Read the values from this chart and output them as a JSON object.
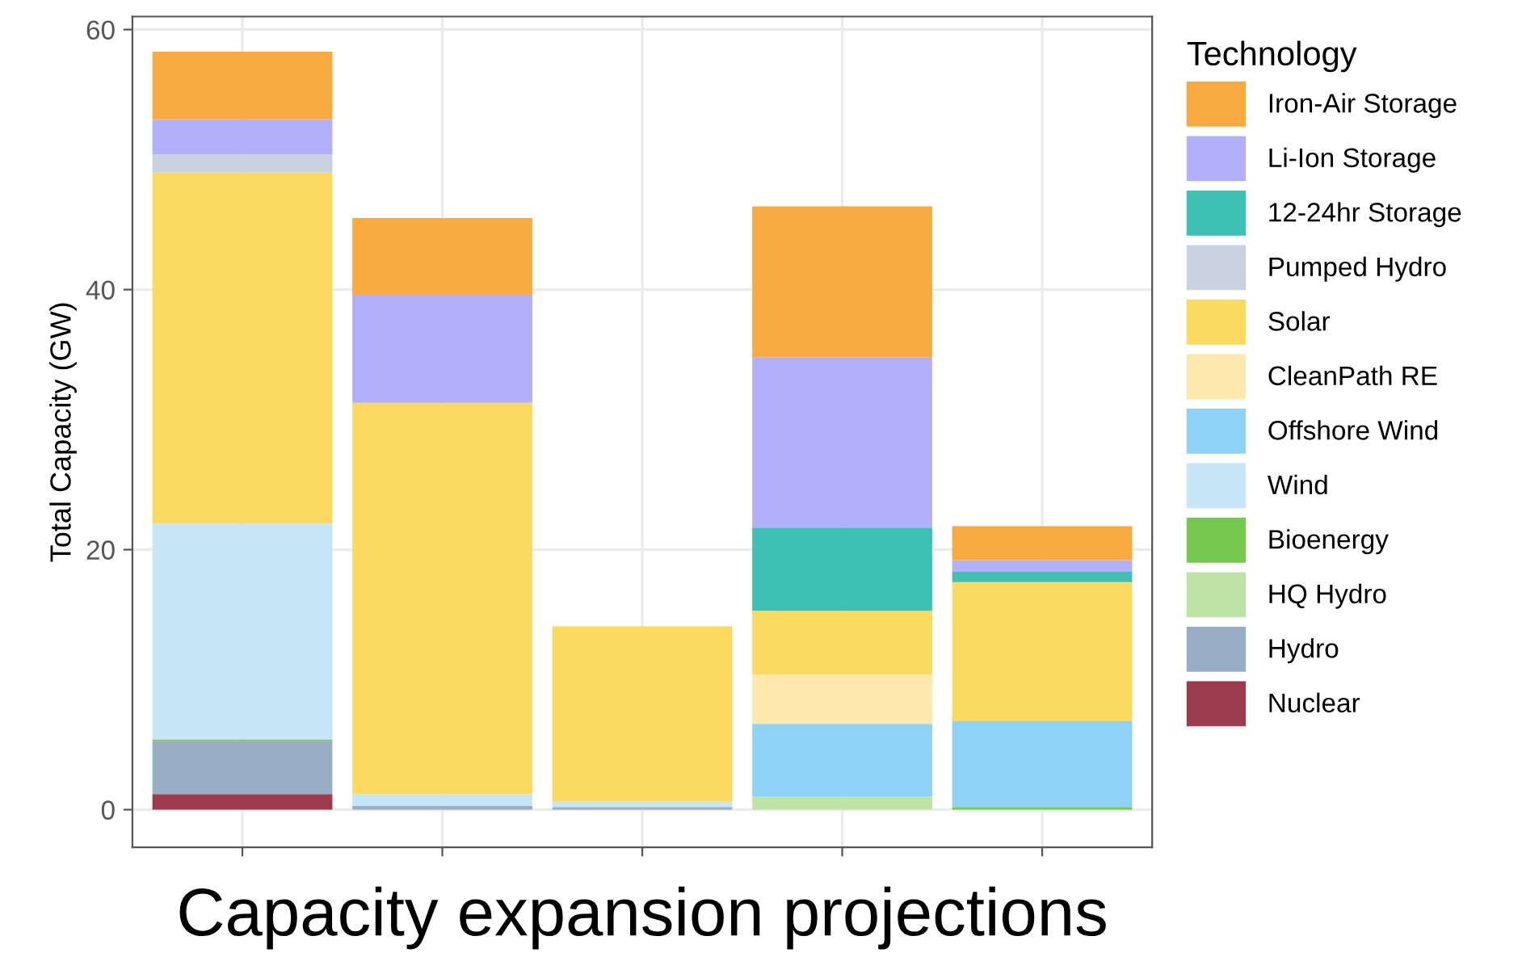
{
  "chart_data": {
    "type": "bar",
    "stacked": true,
    "xlabel": "Capacity expansion projections",
    "ylabel": "Total Capacity (GW)",
    "legend_title": "Technology",
    "legend": "right",
    "grid": true,
    "categories": [
      null,
      null,
      null,
      null,
      null
    ],
    "ylim": [
      -2.9,
      61
    ],
    "yticks": [
      0,
      20,
      40,
      60
    ],
    "series": [
      {
        "name": "Nuclear",
        "color": "#9e3a4e",
        "values": [
          1.2,
          null,
          null,
          null,
          null
        ]
      },
      {
        "name": "Hydro",
        "color": "#98aec6",
        "values": [
          4.1,
          0.3,
          0.2,
          null,
          null
        ]
      },
      {
        "name": "HQ Hydro",
        "color": "#bde4a6",
        "values": [
          null,
          null,
          null,
          1.0,
          null
        ]
      },
      {
        "name": "Bioenergy",
        "color": "#76c94f",
        "values": [
          0.1,
          null,
          null,
          null,
          0.2
        ]
      },
      {
        "name": "Wind",
        "color": "#c6e6f8",
        "values": [
          16.6,
          0.9,
          0.4,
          null,
          null
        ]
      },
      {
        "name": "Offshore Wind",
        "color": "#8ed3f5",
        "values": [
          null,
          null,
          null,
          5.6,
          6.6
        ]
      },
      {
        "name": "CleanPath RE",
        "color": "#fde9ad",
        "values": [
          null,
          null,
          null,
          3.8,
          null
        ]
      },
      {
        "name": "Solar",
        "color": "#fcd95f",
        "values": [
          27,
          30.1,
          13.5,
          4.9,
          10.7
        ]
      },
      {
        "name": "Pumped Hydro",
        "color": "#c9d3e0",
        "values": [
          1.4,
          null,
          null,
          null,
          null
        ]
      },
      {
        "name": "12-24hr Storage",
        "color": "#3ec1b2",
        "values": [
          null,
          null,
          null,
          6.4,
          0.8
        ]
      },
      {
        "name": "Li-Ion Storage",
        "color": "#b3b0fb",
        "values": [
          2.7,
          8.3,
          null,
          13.1,
          0.9
        ]
      },
      {
        "name": "Iron-Air Storage",
        "color": "#f9aa3f",
        "values": [
          5.2,
          5.9,
          null,
          11.6,
          2.6
        ]
      }
    ]
  }
}
